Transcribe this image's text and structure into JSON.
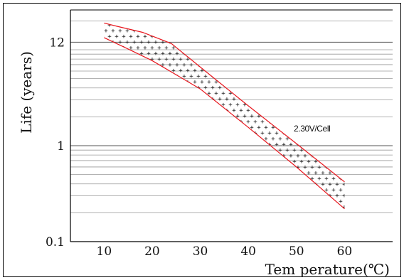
{
  "chart_data": {
    "type": "line",
    "title": "",
    "xlabel": "Tem perature(℃)",
    "ylabel": "Life (years)",
    "x_ticks": [
      10,
      20,
      30,
      40,
      50,
      60
    ],
    "y_ticks": [
      {
        "value": 0.1,
        "label": "0.1"
      },
      {
        "value": 1,
        "label": "1"
      },
      {
        "value": 12,
        "label": "12"
      }
    ],
    "y_scale": "log",
    "xlim": [
      3,
      70
    ],
    "ylim": [
      0.1,
      26
    ],
    "grid": {
      "horizontal": true,
      "vertical": false
    },
    "band": {
      "label": "2.30V/Cell",
      "fill": "dots",
      "upper": [
        {
          "x": 10,
          "y": 19
        },
        {
          "x": 13,
          "y": 17.4
        },
        {
          "x": 18,
          "y": 15.2
        },
        {
          "x": 24,
          "y": 11.6
        },
        {
          "x": 30,
          "y": 6.6
        },
        {
          "x": 40,
          "y": 2.6
        },
        {
          "x": 50,
          "y": 1.05
        },
        {
          "x": 60,
          "y": 0.42
        }
      ],
      "lower": [
        {
          "x": 10,
          "y": 13.4
        },
        {
          "x": 15,
          "y": 10.2
        },
        {
          "x": 20,
          "y": 7.7
        },
        {
          "x": 30,
          "y": 3.9
        },
        {
          "x": 40,
          "y": 1.55
        },
        {
          "x": 50,
          "y": 0.6
        },
        {
          "x": 60,
          "y": 0.22
        }
      ]
    },
    "colors": {
      "band_line": "#e8161d",
      "grid": "#9a9a9a",
      "axis": "#000000",
      "dots": "#111111"
    }
  }
}
